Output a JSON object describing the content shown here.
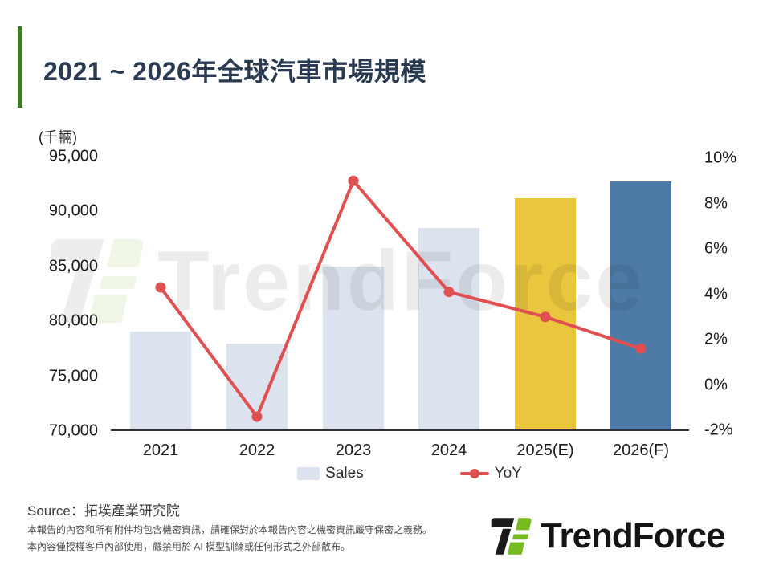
{
  "header": {
    "title": "2021 ~ 2026年全球汽車市場規模"
  },
  "chart_data": {
    "type": "bar",
    "title": "2021 ~ 2026年全球汽車市場規模",
    "categories": [
      "2021",
      "2022",
      "2023",
      "2024",
      "2025(E)",
      "2026(F)"
    ],
    "series": [
      {
        "name": "Sales",
        "type": "bar",
        "axis": "left",
        "unit": "千輛",
        "values": [
          79100,
          78000,
          85000,
          88500,
          91200,
          92700
        ],
        "bar_colors": [
          "#DCE3EE",
          "#DCE3EE",
          "#DCE3EE",
          "#DCE3EE",
          "#E9C63E",
          "#4D7AA7"
        ]
      },
      {
        "name": "YoY",
        "type": "line",
        "axis": "right",
        "unit": "%",
        "values": [
          4.3,
          -1.4,
          9.0,
          4.1,
          3.0,
          1.6
        ],
        "color": "#E15050"
      }
    ],
    "left_axis": {
      "label": "(千輛)",
      "ticks": [
        "95,000",
        "90,000",
        "85,000",
        "80,000",
        "75,000",
        "70,000"
      ],
      "min": 70000,
      "max": 95000
    },
    "right_axis": {
      "ticks": [
        "10%",
        "8%",
        "6%",
        "4%",
        "2%",
        "0%",
        "-2%"
      ],
      "min": -2,
      "max": 10
    },
    "legend": [
      {
        "label": "Sales",
        "swatch_color": "#DCE3EE"
      },
      {
        "label": "YoY",
        "swatch_color": "#E15050"
      }
    ],
    "grid": false,
    "legend_position": "bottom"
  },
  "watermark": {
    "text": "TrendForce"
  },
  "footer": {
    "source": "Source：拓墣產業研究院",
    "disclaimer": [
      "本報告的內容和所有附件均包含機密資訊，請確保對於本報告內容之機密資訊嚴守保密之義務。",
      "本內容僅授權客戶內部使用，嚴禁用於 AI 模型訓練或任何形式之外部散布。"
    ],
    "logo_text": "TrendForce"
  },
  "colors": {
    "accent_green": "#3E7B27",
    "title_navy": "#2A3A50",
    "bar_default": "#DCE3EE",
    "bar_2025": "#E9C63E",
    "bar_2026": "#4D7AA7",
    "yoy_line": "#E15050",
    "logo_green": "#76BC21",
    "logo_black": "#1A1A1A"
  }
}
